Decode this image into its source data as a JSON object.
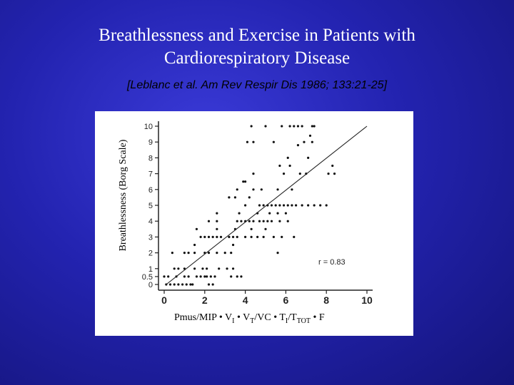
{
  "slide": {
    "title_line1": "Breathlessness and Exercise in Patients with",
    "title_line2": "Cardiorespiratory Disease",
    "citation": "[Leblanc et al.  Am Rev Respir Dis 1986; 133:21-25]"
  },
  "chart_data": {
    "type": "scatter",
    "ylabel": "Breathlessness (Borg Scale)",
    "xlabel_parts": {
      "base": "Pmus/MIP • V",
      "sub1": "I",
      "mid1": " • V",
      "sub2": "T",
      "mid2": "/VC • T",
      "sub3": "I",
      "mid3": "/T",
      "sub4": "TOT",
      "end": " • F"
    },
    "xlim": [
      0,
      10
    ],
    "ylim": [
      0,
      10
    ],
    "x_ticks": [
      "0",
      "2",
      "4",
      "6",
      "8",
      "10"
    ],
    "y_ticks": [
      "0",
      "0.5",
      "1",
      "2",
      "3",
      "4",
      "5",
      "6",
      "7",
      "8",
      "9",
      "10"
    ],
    "y_tick_values": [
      0,
      0.5,
      1,
      2,
      3,
      4,
      5,
      6,
      7,
      8,
      9,
      10
    ],
    "annotation": "r = 0.83",
    "regression_line": [
      [
        0.1,
        0
      ],
      [
        10,
        10
      ]
    ],
    "points": [
      [
        0.1,
        0
      ],
      [
        0.3,
        0
      ],
      [
        0.5,
        0
      ],
      [
        0.7,
        0
      ],
      [
        0.9,
        0
      ],
      [
        1.1,
        0
      ],
      [
        1.3,
        0
      ],
      [
        1.4,
        0
      ],
      [
        2.2,
        0
      ],
      [
        2.4,
        0
      ],
      [
        0.0,
        0.5
      ],
      [
        0.2,
        0.5
      ],
      [
        0.6,
        0.5
      ],
      [
        1.0,
        0.5
      ],
      [
        1.2,
        0.5
      ],
      [
        1.6,
        0.5
      ],
      [
        1.8,
        0.5
      ],
      [
        2.0,
        0.5
      ],
      [
        2.1,
        0.5
      ],
      [
        2.3,
        0.5
      ],
      [
        2.5,
        0.5
      ],
      [
        3.3,
        0.5
      ],
      [
        3.6,
        0.5
      ],
      [
        3.8,
        0.5
      ],
      [
        0.5,
        1
      ],
      [
        0.7,
        1
      ],
      [
        1.0,
        1
      ],
      [
        1.5,
        1
      ],
      [
        1.9,
        1
      ],
      [
        2.1,
        1
      ],
      [
        2.7,
        1
      ],
      [
        3.1,
        1
      ],
      [
        3.4,
        1
      ],
      [
        0.4,
        2
      ],
      [
        1.0,
        2
      ],
      [
        1.2,
        2
      ],
      [
        1.5,
        2
      ],
      [
        2.0,
        2
      ],
      [
        2.2,
        2
      ],
      [
        2.6,
        2
      ],
      [
        3.0,
        2
      ],
      [
        3.3,
        2
      ],
      [
        5.6,
        2
      ],
      [
        1.5,
        2.5
      ],
      [
        3.4,
        2.5
      ],
      [
        1.8,
        3
      ],
      [
        2.0,
        3
      ],
      [
        2.2,
        3
      ],
      [
        2.4,
        3
      ],
      [
        2.6,
        3
      ],
      [
        2.8,
        3
      ],
      [
        3.2,
        3
      ],
      [
        3.4,
        3
      ],
      [
        3.6,
        3
      ],
      [
        4.0,
        3
      ],
      [
        4.3,
        3
      ],
      [
        4.6,
        3
      ],
      [
        4.9,
        3
      ],
      [
        5.4,
        3
      ],
      [
        5.8,
        3
      ],
      [
        6.4,
        3
      ],
      [
        1.6,
        3.5
      ],
      [
        2.6,
        3.5
      ],
      [
        3.5,
        3.5
      ],
      [
        4.3,
        3.5
      ],
      [
        5.0,
        3.5
      ],
      [
        2.2,
        4
      ],
      [
        2.6,
        4
      ],
      [
        3.6,
        4
      ],
      [
        3.8,
        4
      ],
      [
        4.0,
        4
      ],
      [
        4.2,
        4
      ],
      [
        4.4,
        4
      ],
      [
        4.7,
        4
      ],
      [
        4.9,
        4
      ],
      [
        5.1,
        4
      ],
      [
        5.3,
        4
      ],
      [
        5.7,
        4
      ],
      [
        6.1,
        4
      ],
      [
        2.6,
        4.5
      ],
      [
        3.7,
        4.5
      ],
      [
        4.6,
        4.5
      ],
      [
        5.2,
        4.5
      ],
      [
        5.6,
        4.5
      ],
      [
        6.0,
        4.5
      ],
      [
        4.0,
        5
      ],
      [
        4.7,
        5
      ],
      [
        4.9,
        5
      ],
      [
        5.1,
        5
      ],
      [
        5.3,
        5
      ],
      [
        5.5,
        5
      ],
      [
        5.7,
        5
      ],
      [
        5.9,
        5
      ],
      [
        6.1,
        5
      ],
      [
        6.3,
        5
      ],
      [
        6.5,
        5
      ],
      [
        6.8,
        5
      ],
      [
        7.1,
        5
      ],
      [
        7.4,
        5
      ],
      [
        7.7,
        5
      ],
      [
        8.0,
        5
      ],
      [
        3.2,
        5.5
      ],
      [
        3.5,
        5.5
      ],
      [
        4.2,
        5.5
      ],
      [
        3.6,
        6
      ],
      [
        4.4,
        6
      ],
      [
        4.8,
        6
      ],
      [
        5.6,
        6
      ],
      [
        6.3,
        6
      ],
      [
        3.9,
        6.5
      ],
      [
        4.0,
        6.5
      ],
      [
        4.4,
        7
      ],
      [
        5.9,
        7
      ],
      [
        6.7,
        7
      ],
      [
        7.0,
        7
      ],
      [
        8.1,
        7
      ],
      [
        8.4,
        7
      ],
      [
        5.7,
        7.5
      ],
      [
        6.2,
        7.5
      ],
      [
        8.3,
        7.5
      ],
      [
        6.1,
        8
      ],
      [
        7.1,
        8
      ],
      [
        4.1,
        9
      ],
      [
        4.4,
        9
      ],
      [
        5.4,
        9
      ],
      [
        6.9,
        9
      ],
      [
        7.3,
        9
      ],
      [
        6.6,
        8.8
      ],
      [
        7.2,
        9.4
      ],
      [
        4.3,
        10
      ],
      [
        5.0,
        10
      ],
      [
        5.8,
        10
      ],
      [
        6.2,
        10
      ],
      [
        6.4,
        10
      ],
      [
        6.6,
        10
      ],
      [
        6.8,
        10
      ],
      [
        7.3,
        10
      ],
      [
        7.4,
        10
      ]
    ]
  }
}
